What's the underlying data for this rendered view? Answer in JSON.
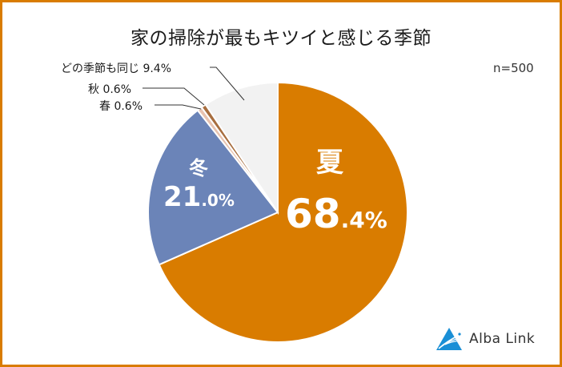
{
  "title": "家の掃除が最もキツイと感じる季節",
  "sample_size": "n=500",
  "brand": {
    "name": "Alba Link",
    "icon": "alba-link-logo-icon",
    "color": "#1a8fd6"
  },
  "frame_color": "#d97c00",
  "labels": {
    "summer_name": "夏",
    "summer_int": "68",
    "summer_dec": ".4%",
    "winter_name": "冬",
    "winter_int": "21",
    "winter_dec": ".0%",
    "same": "どの季節も同じ 9.4%",
    "autumn": "秋 0.6%",
    "spring": "春 0.6%"
  },
  "chart_data": {
    "type": "pie",
    "title": "家の掃除が最もキツイと感じる季節",
    "annotation": "n=500",
    "start_angle": "12 o'clock, clockwise",
    "categories": [
      "夏",
      "冬",
      "春",
      "秋",
      "どの季節も同じ"
    ],
    "values": [
      68.4,
      21.0,
      0.6,
      0.6,
      9.4
    ],
    "unit": "%",
    "colors": [
      "#d97c00",
      "#6b84b8",
      "#e8c3b0",
      "#a86e3f",
      "#f2f2f2"
    ],
    "legend": "none (callout labels)"
  }
}
